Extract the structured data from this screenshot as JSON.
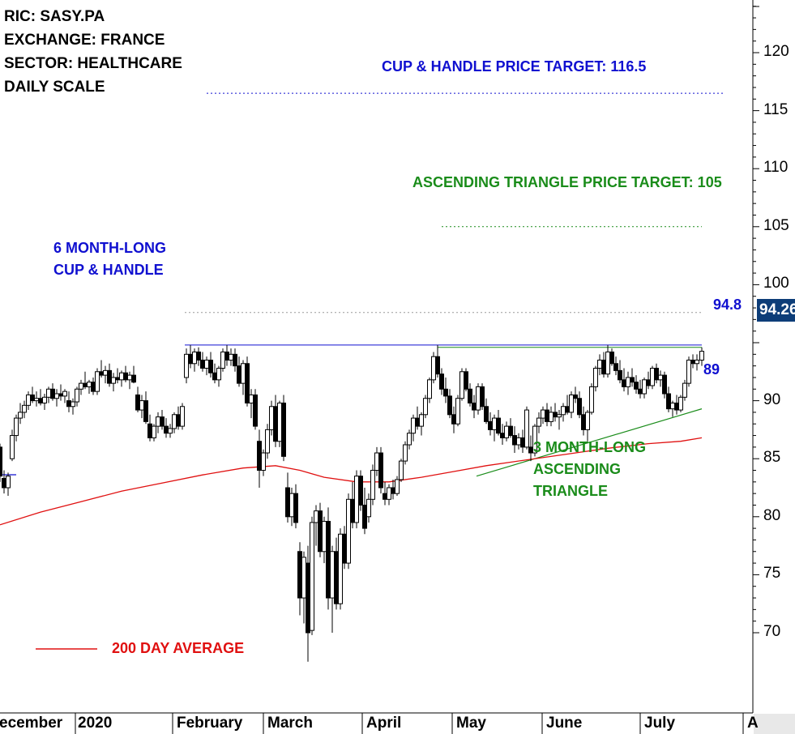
{
  "info": {
    "ric": "RIC: SASY.PA",
    "exchange": "EXCHANGE: FRANCE",
    "sector": "SECTOR: HEALTHCARE",
    "scale": "DAILY SCALE"
  },
  "annotations": {
    "cup_target": "CUP & HANDLE PRICE TARGET: 116.5",
    "triangle_target": "ASCENDING TRIANGLE PRICE TARGET: 105",
    "cup_label_1": "6 MONTH-LONG",
    "cup_label_2": "CUP & HANDLE",
    "triangle_label_1": "3 MONTH-LONG",
    "triangle_label_2": "ASCENDING",
    "triangle_label_3": "TRIANGLE",
    "resistance_label": "94.8",
    "support_label": "89",
    "ma_legend": "200 DAY AVERAGE",
    "last_price": "94.26"
  },
  "colors": {
    "blue": "#1010d0",
    "green": "#1a8c1a",
    "red": "#e01010",
    "price_box": "#0d3d78"
  },
  "chart_data": {
    "type": "candlestick",
    "ylim": [
      64,
      123
    ],
    "yticks": [
      70,
      75,
      80,
      85,
      90,
      95,
      100,
      105,
      110,
      115,
      120
    ],
    "ytick_labels": [
      "70",
      "75",
      "80",
      "85",
      "90",
      "",
      "100",
      "105",
      "110",
      "115",
      "120"
    ],
    "xlabels": [
      "ecember",
      "2020",
      "February",
      "March",
      "April",
      "May",
      "June",
      "July",
      "A"
    ],
    "levels": {
      "cup_handle_target": 116.5,
      "ascending_triangle_target": 105,
      "cup_resistance": 94.8,
      "triangle_resistance": 94.6,
      "dotted_gray": 97.6
    },
    "triangle_support": {
      "start": [
        588,
        83.5
      ],
      "end": [
        866,
        89.3
      ]
    },
    "moving_average_200": [
      [
        0,
        79.3
      ],
      [
        50,
        80.4
      ],
      [
        100,
        81.3
      ],
      [
        150,
        82.2
      ],
      [
        200,
        82.9
      ],
      [
        250,
        83.6
      ],
      [
        300,
        84.2
      ],
      [
        340,
        84.4
      ],
      [
        370,
        84.0
      ],
      [
        400,
        83.4
      ],
      [
        440,
        83.0
      ],
      [
        480,
        83.0
      ],
      [
        520,
        83.4
      ],
      [
        560,
        83.9
      ],
      [
        600,
        84.4
      ],
      [
        650,
        84.9
      ],
      [
        700,
        85.4
      ],
      [
        750,
        85.9
      ],
      [
        800,
        86.3
      ],
      [
        840,
        86.5
      ],
      [
        866,
        86.8
      ]
    ],
    "ohlc": [
      [
        0,
        86.0,
        86.3,
        83.0,
        83.5
      ],
      [
        5,
        83.3,
        84.0,
        82.0,
        82.5
      ],
      [
        10,
        82.5,
        83.8,
        81.8,
        83.5
      ],
      [
        15,
        85.0,
        87.5,
        84.8,
        87.0
      ],
      [
        20,
        87.0,
        88.8,
        86.5,
        88.5
      ],
      [
        25,
        88.5,
        89.8,
        88.0,
        89.0
      ],
      [
        30,
        89.0,
        90.0,
        88.5,
        89.6
      ],
      [
        35,
        89.6,
        90.8,
        89.2,
        90.5
      ],
      [
        40,
        90.5,
        91.2,
        89.8,
        90.0
      ],
      [
        45,
        90.0,
        90.8,
        89.5,
        90.2
      ],
      [
        50,
        90.2,
        91.0,
        89.6,
        89.8
      ],
      [
        55,
        89.8,
        90.6,
        89.2,
        90.3
      ],
      [
        60,
        90.3,
        91.2,
        89.8,
        91.0
      ],
      [
        65,
        91.0,
        91.5,
        90.0,
        90.2
      ],
      [
        70,
        90.2,
        91.0,
        89.5,
        90.6
      ],
      [
        75,
        90.6,
        91.4,
        90.0,
        90.4
      ],
      [
        80,
        90.4,
        91.0,
        89.8,
        90.8
      ],
      [
        85,
        90.0,
        90.8,
        89.0,
        89.5
      ],
      [
        90,
        89.5,
        90.2,
        88.8,
        89.9
      ],
      [
        95,
        89.9,
        91.2,
        89.5,
        91.0
      ],
      [
        100,
        91.0,
        91.8,
        90.5,
        91.5
      ],
      [
        105,
        91.5,
        92.5,
        91.0,
        91.2
      ],
      [
        110,
        91.2,
        91.8,
        90.6,
        91.6
      ],
      [
        115,
        91.6,
        92.0,
        90.5,
        90.8
      ],
      [
        120,
        90.8,
        92.8,
        90.5,
        92.5
      ],
      [
        125,
        92.5,
        93.5,
        92.0,
        92.2
      ],
      [
        130,
        92.2,
        93.0,
        91.5,
        92.6
      ],
      [
        135,
        92.6,
        93.2,
        91.2,
        91.5
      ],
      [
        140,
        91.5,
        92.4,
        90.8,
        92.0
      ],
      [
        145,
        92.0,
        92.8,
        91.5,
        91.8
      ],
      [
        150,
        91.8,
        92.6,
        91.2,
        92.4
      ],
      [
        155,
        92.4,
        93.0,
        91.6,
        91.8
      ],
      [
        160,
        91.8,
        92.5,
        91.0,
        92.2
      ],
      [
        165,
        92.2,
        93.0,
        91.5,
        91.6
      ],
      [
        170,
        90.5,
        91.2,
        89.0,
        89.2
      ],
      [
        175,
        89.2,
        90.5,
        88.5,
        90.0
      ],
      [
        180,
        90.0,
        90.8,
        88.0,
        88.2
      ],
      [
        185,
        88.0,
        88.8,
        86.5,
        86.8
      ],
      [
        190,
        86.8,
        88.0,
        86.5,
        87.8
      ],
      [
        195,
        87.8,
        89.0,
        87.2,
        88.6
      ],
      [
        200,
        88.6,
        89.2,
        87.5,
        87.8
      ],
      [
        205,
        87.8,
        88.5,
        86.8,
        87.2
      ],
      [
        210,
        87.2,
        88.0,
        86.8,
        87.6
      ],
      [
        215,
        87.6,
        89.0,
        87.2,
        88.8
      ],
      [
        220,
        88.8,
        89.5,
        87.5,
        87.8
      ],
      [
        225,
        87.8,
        89.8,
        87.5,
        89.5
      ],
      [
        230,
        92.0,
        94.5,
        91.5,
        94.0
      ],
      [
        235,
        94.0,
        94.8,
        92.8,
        93.2
      ],
      [
        240,
        93.2,
        94.5,
        92.5,
        94.2
      ],
      [
        245,
        94.2,
        94.6,
        93.0,
        93.5
      ],
      [
        250,
        93.5,
        94.2,
        92.5,
        92.8
      ],
      [
        255,
        92.8,
        93.8,
        92.2,
        93.5
      ],
      [
        260,
        93.5,
        94.2,
        92.0,
        92.4
      ],
      [
        265,
        92.4,
        93.2,
        91.5,
        91.8
      ],
      [
        270,
        91.8,
        93.0,
        91.2,
        92.8
      ],
      [
        275,
        92.8,
        94.5,
        92.5,
        94.2
      ],
      [
        280,
        94.2,
        94.8,
        93.0,
        93.5
      ],
      [
        285,
        93.5,
        94.5,
        93.0,
        94.0
      ],
      [
        290,
        94.0,
        94.5,
        92.5,
        93.0
      ],
      [
        295,
        93.0,
        93.8,
        91.2,
        91.5
      ],
      [
        300,
        91.5,
        93.5,
        90.5,
        93.2
      ],
      [
        305,
        93.2,
        93.8,
        89.5,
        89.8
      ],
      [
        310,
        89.8,
        91.0,
        88.5,
        90.5
      ],
      [
        315,
        90.5,
        91.0,
        87.5,
        87.8
      ],
      [
        320,
        86.5,
        87.5,
        82.5,
        84.0
      ],
      [
        325,
        84.0,
        85.8,
        83.5,
        85.5
      ],
      [
        330,
        85.5,
        88.0,
        85.0,
        87.5
      ],
      [
        335,
        87.5,
        90.0,
        87.0,
        89.5
      ],
      [
        340,
        89.5,
        90.5,
        86.0,
        86.5
      ],
      [
        345,
        86.5,
        90.0,
        86.0,
        89.8
      ],
      [
        350,
        89.8,
        90.5,
        84.8,
        85.2
      ],
      [
        355,
        82.5,
        83.8,
        79.5,
        80.0
      ],
      [
        360,
        80.0,
        82.5,
        79.2,
        82.0
      ],
      [
        365,
        82.0,
        82.8,
        79.0,
        79.5
      ],
      [
        370,
        77.0,
        77.8,
        71.5,
        73.0
      ],
      [
        375,
        73.0,
        77.0,
        70.8,
        76.5
      ],
      [
        380,
        76.0,
        77.5,
        67.5,
        70.0
      ],
      [
        385,
        70.2,
        80.0,
        69.8,
        79.5
      ],
      [
        390,
        79.5,
        81.0,
        77.5,
        80.5
      ],
      [
        395,
        80.5,
        81.2,
        76.5,
        77.0
      ],
      [
        400,
        77.0,
        80.0,
        76.0,
        79.6
      ],
      [
        405,
        79.6,
        80.8,
        72.0,
        73.0
      ],
      [
        410,
        73.0,
        77.5,
        70.0,
        77.0
      ],
      [
        415,
        77.0,
        78.2,
        72.0,
        72.5
      ],
      [
        420,
        72.5,
        79.0,
        72.0,
        78.5
      ],
      [
        425,
        78.5,
        79.2,
        75.5,
        76.0
      ],
      [
        430,
        76.0,
        82.0,
        75.5,
        81.5
      ],
      [
        435,
        81.5,
        83.0,
        79.0,
        79.5
      ],
      [
        440,
        79.5,
        84.0,
        79.0,
        83.5
      ],
      [
        445,
        83.5,
        84.0,
        80.5,
        81.0
      ],
      [
        450,
        81.0,
        82.5,
        78.5,
        79.0
      ],
      [
        455,
        80.0,
        82.0,
        79.5,
        81.5
      ],
      [
        460,
        81.5,
        84.5,
        81.0,
        84.0
      ],
      [
        465,
        84.0,
        86.0,
        83.5,
        85.5
      ],
      [
        470,
        85.5,
        86.0,
        82.0,
        82.5
      ],
      [
        475,
        82.0,
        83.0,
        81.0,
        81.5
      ],
      [
        480,
        81.5,
        82.8,
        81.0,
        82.5
      ],
      [
        485,
        82.5,
        83.2,
        81.5,
        82.0
      ],
      [
        490,
        82.0,
        83.5,
        81.8,
        83.2
      ],
      [
        495,
        83.2,
        85.0,
        83.0,
        84.8
      ],
      [
        500,
        84.8,
        86.5,
        84.5,
        86.2
      ],
      [
        505,
        86.2,
        87.5,
        85.8,
        87.2
      ],
      [
        510,
        87.2,
        88.8,
        86.5,
        88.5
      ],
      [
        515,
        88.5,
        89.5,
        87.5,
        87.8
      ],
      [
        520,
        87.8,
        89.0,
        87.0,
        88.8
      ],
      [
        525,
        88.8,
        90.5,
        88.5,
        90.2
      ],
      [
        530,
        90.2,
        92.0,
        89.8,
        91.8
      ],
      [
        535,
        91.8,
        94.2,
        91.5,
        93.8
      ],
      [
        540,
        93.8,
        94.8,
        92.0,
        92.3
      ],
      [
        545,
        92.3,
        92.8,
        90.5,
        91.0
      ],
      [
        550,
        91.0,
        92.0,
        89.8,
        90.4
      ],
      [
        555,
        90.4,
        91.0,
        88.5,
        88.8
      ],
      [
        560,
        88.8,
        89.5,
        87.2,
        88.0
      ],
      [
        565,
        88.0,
        90.5,
        87.8,
        90.2
      ],
      [
        570,
        90.2,
        92.8,
        90.0,
        92.5
      ],
      [
        575,
        92.5,
        92.8,
        90.8,
        91.0
      ],
      [
        580,
        91.0,
        91.5,
        89.5,
        89.8
      ],
      [
        585,
        89.8,
        90.5,
        88.5,
        89.2
      ],
      [
        590,
        89.2,
        91.5,
        88.8,
        91.2
      ],
      [
        595,
        91.2,
        91.5,
        89.2,
        89.5
      ],
      [
        600,
        89.5,
        90.2,
        88.0,
        88.2
      ],
      [
        605,
        88.2,
        89.0,
        87.0,
        87.5
      ],
      [
        610,
        87.5,
        88.8,
        86.5,
        88.5
      ],
      [
        615,
        88.5,
        89.2,
        87.0,
        87.2
      ],
      [
        620,
        87.2,
        88.0,
        86.2,
        86.8
      ],
      [
        625,
        86.8,
        88.2,
        86.5,
        87.8
      ],
      [
        630,
        87.8,
        88.5,
        86.8,
        87.0
      ],
      [
        635,
        87.0,
        87.8,
        85.5,
        86.2
      ],
      [
        640,
        86.2,
        87.2,
        85.8,
        86.8
      ],
      [
        645,
        86.8,
        87.5,
        85.5,
        86.0
      ],
      [
        650,
        86.0,
        89.5,
        85.8,
        89.2
      ],
      [
        655,
        86.0,
        87.0,
        84.8,
        85.5
      ],
      [
        660,
        85.5,
        88.0,
        85.2,
        87.8
      ],
      [
        665,
        87.8,
        89.0,
        87.2,
        88.5
      ],
      [
        670,
        88.5,
        89.5,
        88.0,
        89.2
      ],
      [
        675,
        89.2,
        89.8,
        87.8,
        88.2
      ],
      [
        680,
        88.2,
        89.5,
        87.8,
        89.0
      ],
      [
        685,
        89.0,
        89.8,
        88.2,
        88.6
      ],
      [
        690,
        88.6,
        89.2,
        87.5,
        88.8
      ],
      [
        695,
        88.8,
        89.8,
        88.2,
        89.5
      ],
      [
        700,
        89.5,
        90.5,
        88.8,
        89.0
      ],
      [
        705,
        89.0,
        90.8,
        88.5,
        90.5
      ],
      [
        710,
        90.5,
        91.2,
        89.8,
        90.2
      ],
      [
        715,
        90.2,
        90.8,
        88.5,
        88.8
      ],
      [
        720,
        88.8,
        89.5,
        87.0,
        87.5
      ],
      [
        725,
        87.5,
        89.2,
        86.5,
        89.0
      ],
      [
        730,
        89.0,
        91.5,
        88.8,
        91.2
      ],
      [
        735,
        91.2,
        93.0,
        90.8,
        92.8
      ],
      [
        740,
        92.8,
        94.0,
        92.2,
        93.5
      ],
      [
        745,
        93.5,
        94.2,
        92.0,
        92.3
      ],
      [
        750,
        92.3,
        94.8,
        92.0,
        94.2
      ],
      [
        755,
        94.2,
        94.5,
        93.0,
        93.2
      ],
      [
        760,
        93.2,
        93.8,
        92.2,
        92.6
      ],
      [
        765,
        92.6,
        93.5,
        91.5,
        91.8
      ],
      [
        770,
        91.8,
        92.8,
        90.8,
        91.2
      ],
      [
        775,
        91.2,
        92.5,
        90.5,
        92.0
      ],
      [
        780,
        92.0,
        92.8,
        91.2,
        91.6
      ],
      [
        785,
        91.6,
        92.2,
        90.6,
        91.0
      ],
      [
        790,
        91.0,
        91.8,
        90.2,
        90.6
      ],
      [
        795,
        90.6,
        92.0,
        90.2,
        91.8
      ],
      [
        800,
        91.8,
        92.5,
        91.0,
        91.3
      ],
      [
        805,
        91.3,
        93.0,
        91.0,
        92.8
      ],
      [
        810,
        92.8,
        93.2,
        91.5,
        91.8
      ],
      [
        815,
        91.8,
        92.6,
        91.2,
        92.2
      ],
      [
        820,
        92.2,
        92.5,
        90.2,
        90.6
      ],
      [
        825,
        90.6,
        91.2,
        89.0,
        89.3
      ],
      [
        830,
        89.3,
        90.0,
        88.6,
        89.8
      ],
      [
        835,
        89.8,
        90.5,
        88.8,
        89.2
      ],
      [
        840,
        89.2,
        90.5,
        89.0,
        90.3
      ],
      [
        845,
        90.3,
        91.8,
        90.0,
        91.5
      ],
      [
        850,
        91.5,
        93.8,
        91.2,
        93.5
      ],
      [
        855,
        93.5,
        94.0,
        92.8,
        93.2
      ],
      [
        860,
        93.2,
        94.0,
        92.6,
        93.5
      ],
      [
        866,
        93.5,
        94.6,
        93.0,
        94.26
      ]
    ]
  }
}
